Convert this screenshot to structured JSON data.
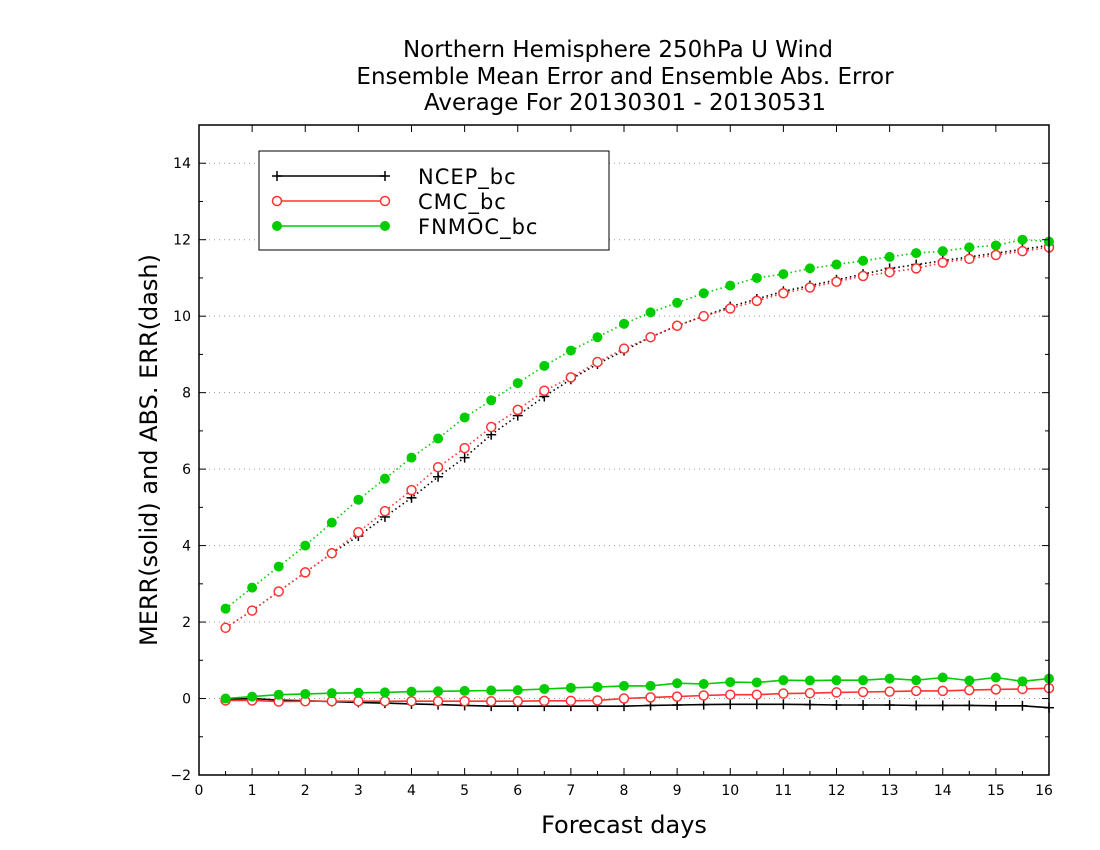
{
  "chart_data": {
    "type": "line",
    "title": [
      "Northern Hemisphere 250hPa U Wind",
      "Ensemble Mean Error and Ensemble Abs. Error",
      "Average For 20130301 - 20130531"
    ],
    "xlabel": "Forecast days",
    "ylabel": "MERR(solid) and ABS. ERR(dash)",
    "xlim": [
      0,
      16
    ],
    "ylim": [
      -2,
      15
    ],
    "xticks": [
      0,
      1,
      2,
      3,
      4,
      5,
      6,
      7,
      8,
      9,
      10,
      11,
      12,
      13,
      14,
      15,
      16
    ],
    "yticks": [
      -2,
      0,
      2,
      4,
      6,
      8,
      10,
      12,
      14
    ],
    "grid": "horizontal dotted",
    "legend_position": "top-left",
    "x": [
      0.5,
      1,
      1.5,
      2,
      2.5,
      3,
      3.5,
      4,
      4.5,
      5,
      5.5,
      6,
      6.5,
      7,
      7.5,
      8,
      8.5,
      9,
      9.5,
      10,
      10.5,
      11,
      11.5,
      12,
      12.5,
      13,
      13.5,
      14,
      14.5,
      15,
      15.5,
      16
    ],
    "series": [
      {
        "name": "NCEP_bc",
        "color": "#000000",
        "marker": "plus",
        "merr": [
          -0.02,
          0.0,
          -0.04,
          -0.06,
          -0.08,
          -0.1,
          -0.12,
          -0.14,
          -0.16,
          -0.18,
          -0.2,
          -0.2,
          -0.2,
          -0.2,
          -0.2,
          -0.2,
          -0.18,
          -0.17,
          -0.16,
          -0.15,
          -0.15,
          -0.15,
          -0.16,
          -0.17,
          -0.17,
          -0.17,
          -0.18,
          -0.18,
          -0.18,
          -0.19,
          -0.19,
          -0.24
        ],
        "abs_err": [
          1.85,
          2.3,
          2.8,
          3.3,
          3.8,
          4.25,
          4.75,
          5.25,
          5.8,
          6.3,
          6.9,
          7.4,
          7.9,
          8.35,
          8.75,
          9.1,
          9.45,
          9.75,
          10.0,
          10.25,
          10.45,
          10.65,
          10.8,
          10.95,
          11.1,
          11.25,
          11.35,
          11.45,
          11.55,
          11.65,
          11.75,
          11.85
        ]
      },
      {
        "name": "CMC_bc",
        "color": "#ff3333",
        "marker": "open-circle",
        "merr": [
          -0.05,
          -0.05,
          -0.08,
          -0.07,
          -0.07,
          -0.07,
          -0.07,
          -0.07,
          -0.07,
          -0.07,
          -0.07,
          -0.07,
          -0.06,
          -0.06,
          -0.05,
          0.0,
          0.03,
          0.05,
          0.08,
          0.1,
          0.1,
          0.13,
          0.14,
          0.16,
          0.17,
          0.18,
          0.2,
          0.2,
          0.22,
          0.24,
          0.25,
          0.27
        ],
        "abs_err": [
          1.85,
          2.3,
          2.8,
          3.3,
          3.8,
          4.35,
          4.9,
          5.45,
          6.05,
          6.55,
          7.1,
          7.55,
          8.05,
          8.4,
          8.8,
          9.15,
          9.45,
          9.75,
          10.0,
          10.2,
          10.4,
          10.6,
          10.75,
          10.9,
          11.05,
          11.15,
          11.25,
          11.4,
          11.5,
          11.6,
          11.7,
          11.8
        ]
      },
      {
        "name": "FNMOC_bc",
        "color": "#00cc00",
        "marker": "filled-circle",
        "merr": [
          0.0,
          0.05,
          0.1,
          0.12,
          0.14,
          0.15,
          0.16,
          0.18,
          0.19,
          0.2,
          0.21,
          0.22,
          0.25,
          0.28,
          0.3,
          0.33,
          0.33,
          0.4,
          0.38,
          0.43,
          0.42,
          0.48,
          0.47,
          0.48,
          0.48,
          0.52,
          0.48,
          0.55,
          0.47,
          0.55,
          0.45,
          0.52
        ],
        "abs_err": [
          2.35,
          2.9,
          3.45,
          4.0,
          4.6,
          5.2,
          5.75,
          6.3,
          6.8,
          7.35,
          7.8,
          8.25,
          8.7,
          9.1,
          9.45,
          9.8,
          10.1,
          10.35,
          10.6,
          10.8,
          11.0,
          11.1,
          11.25,
          11.35,
          11.45,
          11.55,
          11.65,
          11.7,
          11.8,
          11.85,
          12.0,
          11.95
        ]
      }
    ]
  }
}
